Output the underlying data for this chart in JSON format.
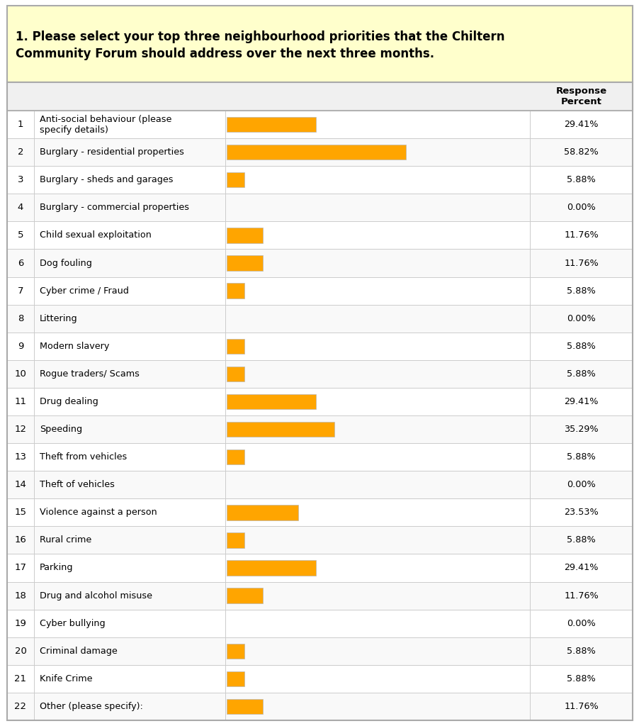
{
  "title_line1": "1. Please select your top three neighbourhood priorities that the Chiltern",
  "title_line2": "Community Forum should address over the next three months.",
  "title_bg": "#ffffcc",
  "bar_color": "#FFA500",
  "bar_border_color": "#b8b8b8",
  "text_color": "#000000",
  "col_header": "Response\nPercent",
  "categories": [
    "Anti-social behaviour (please\nspecify details)",
    "Burglary - residential properties",
    "Burglary - sheds and garages",
    "Burglary - commercial properties",
    "Child sexual exploitation",
    "Dog fouling",
    "Cyber crime / Fraud",
    "Littering",
    "Modern slavery",
    "Rogue traders/ Scams",
    "Drug dealing",
    "Speeding",
    "Theft from vehicles",
    "Theft of vehicles",
    "Violence against a person",
    "Rural crime",
    "Parking",
    "Drug and alcohol misuse",
    "Cyber bullying",
    "Criminal damage",
    "Knife Crime",
    "Other (please specify):"
  ],
  "values": [
    29.41,
    58.82,
    5.88,
    0.0,
    11.76,
    11.76,
    5.88,
    0.0,
    5.88,
    5.88,
    29.41,
    35.29,
    5.88,
    0.0,
    23.53,
    5.88,
    29.41,
    11.76,
    0.0,
    5.88,
    5.88,
    11.76
  ],
  "row_numbers": [
    1,
    2,
    3,
    4,
    5,
    6,
    7,
    8,
    9,
    10,
    11,
    12,
    13,
    14,
    15,
    16,
    17,
    18,
    19,
    20,
    21,
    22
  ],
  "outer_border": "#aaaaaa",
  "grid_color": "#cccccc",
  "max_bar_value": 100,
  "bg_color": "#ffffff",
  "margin_color": "#ffffff"
}
